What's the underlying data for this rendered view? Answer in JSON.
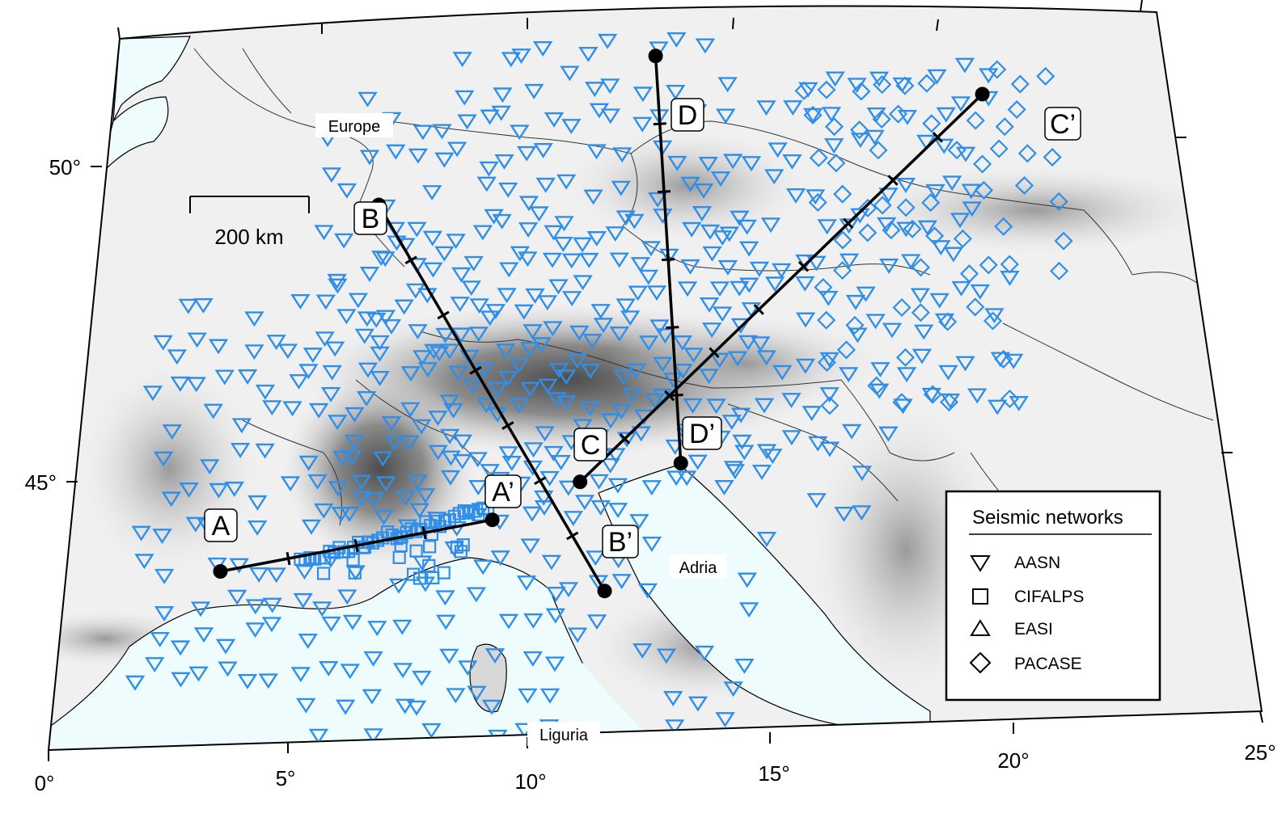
{
  "map": {
    "lon_ticks": [
      "0°",
      "5°",
      "10°",
      "15°",
      "20°",
      "25°"
    ],
    "lat_ticks": [
      "45°",
      "50°"
    ],
    "scale_bar_label": "200 km",
    "place_labels": [
      "Europe",
      "Adria",
      "Liguria"
    ],
    "colors": {
      "station": "#2f8fe8",
      "sea": "#eefcfd",
      "relief_light": "#f4f4f4",
      "relief_dark": "#5a5a5a",
      "profile": "#000000"
    }
  },
  "profiles": [
    {
      "start": "A",
      "end": "A’",
      "start_lonlat": [
        3.3,
        44.2
      ],
      "end_lonlat": [
        9.1,
        44.75
      ]
    },
    {
      "start": "B",
      "end": "B’",
      "start_lonlat": [
        6.4,
        48.8
      ],
      "end_lonlat": [
        11.5,
        43.8
      ]
    },
    {
      "start": "C",
      "end": "C’",
      "start_lonlat": [
        11.0,
        45.2
      ],
      "end_lonlat": [
        20.6,
        50.0
      ]
    },
    {
      "start": "D",
      "end": "D’",
      "start_lonlat": [
        12.9,
        50.6
      ],
      "end_lonlat": [
        13.2,
        45.4
      ]
    }
  ],
  "legend": {
    "title": "Seismic networks",
    "items": [
      {
        "label": "AASN",
        "symbol": "inverted-triangle"
      },
      {
        "label": "CIFALPS",
        "symbol": "square"
      },
      {
        "label": "EASI",
        "symbol": "triangle"
      },
      {
        "label": "PACASE",
        "symbol": "diamond"
      }
    ]
  }
}
